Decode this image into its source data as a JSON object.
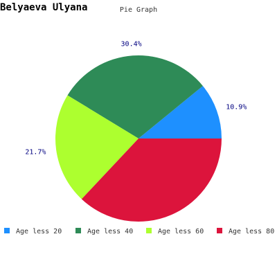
{
  "chart_data": {
    "type": "pie",
    "title": "Belyaeva Ulyana",
    "subtitle": "Pie Graph",
    "slices": [
      {
        "label": "Age less 20",
        "value": 10.9,
        "value_label": "10.9%",
        "color": "#1e90ff"
      },
      {
        "label": "Age less 40",
        "value": 30.4,
        "value_label": "30.4%",
        "color": "#2e8b57"
      },
      {
        "label": "Age less 60",
        "value": 21.7,
        "value_label": "21.7%",
        "color": "#adff2f"
      },
      {
        "label": "Age less 80",
        "value": 37.0,
        "value_label": "",
        "color": "#dc143c"
      }
    ],
    "start_angle_deg": 0,
    "direction": "counterclockwise",
    "legend_position": "bottom"
  }
}
